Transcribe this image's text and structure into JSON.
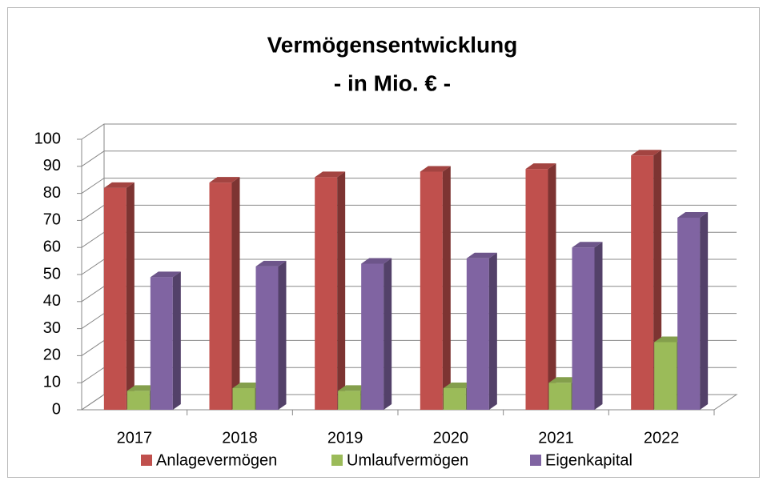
{
  "chart_data": {
    "type": "bar3d",
    "title": "Vermögensentwicklung",
    "subtitle": "- in Mio. € -",
    "categories": [
      "2017",
      "2018",
      "2019",
      "2020",
      "2021",
      "2022"
    ],
    "series": [
      {
        "name": "Anlagevermögen",
        "color": "#c0504d",
        "values": [
          82,
          84,
          86,
          88,
          89,
          94
        ]
      },
      {
        "name": "Umlaufvermögen",
        "color": "#9bbb59",
        "values": [
          7,
          8,
          7,
          8,
          10,
          25
        ]
      },
      {
        "name": "Eigenkapital",
        "color": "#8064a2",
        "values": [
          49,
          53,
          54,
          56,
          60,
          71
        ]
      }
    ],
    "ylim": [
      0,
      100
    ],
    "yticks": [
      0,
      10,
      20,
      30,
      40,
      50,
      60,
      70,
      80,
      90,
      100
    ],
    "grid": true,
    "legend": "bottom"
  }
}
